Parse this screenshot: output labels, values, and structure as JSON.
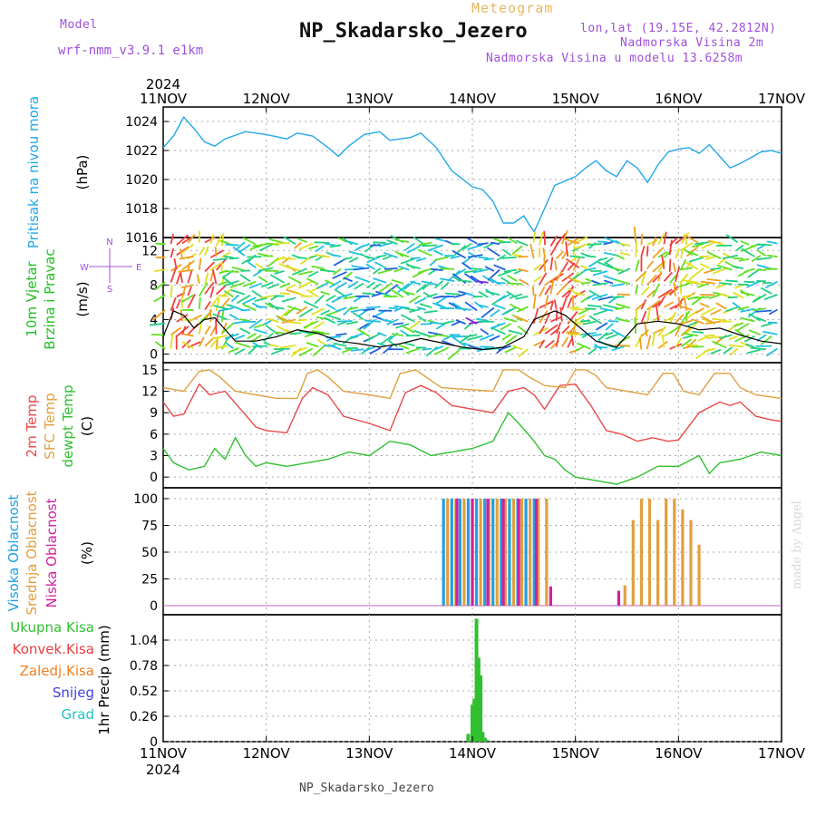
{
  "header": {
    "meteogram_title": "Meteogram",
    "station": "NP_Skadarsko_Jezero",
    "model_label": "Model",
    "model_name": "wrf-nmm_v3.9.1 e1km",
    "lonlat": "lon,lat (19.15E, 42.2812N)",
    "elevation": "Nadmorska Visina 2m",
    "elevation_model": "Nadmorska Visina u modelu 13.6258m"
  },
  "footer": {
    "station": "NP_Skadarsko_Jezero",
    "watermark": "made by Angel"
  },
  "time_axis": {
    "year": "2024",
    "ticks": [
      "11NOV",
      "12NOV",
      "13NOV",
      "14NOV",
      "15NOV",
      "16NOV",
      "17NOV"
    ]
  },
  "colors": {
    "pressure": "#22a8e8",
    "temp2m": "#e84848",
    "sfc_temp": "#e0a040",
    "dewpoint": "#30c030",
    "high_cloud": "#20a0e0",
    "mid_cloud": "#e0a040",
    "low_cloud": "#d020a0",
    "precip_total": "#30c030",
    "precip_conv": "#e84040",
    "precip_frozen": "#f08020",
    "snow": "#4040e0",
    "hail": "#20c0c0",
    "wind_speed": "#000000",
    "gust": "#e84848"
  },
  "chart_data": [
    {
      "type": "line",
      "panel": "pressure",
      "ylabel_main": "Pritisak na nivou mora",
      "unit": "(hPa)",
      "ylim": [
        1016,
        1025
      ],
      "yticks": [
        "1016",
        "1018",
        "1020",
        "1022",
        "1024"
      ],
      "series": [
        {
          "name": "Pritisak na nivou mora",
          "x_days": [
            0,
            0.1,
            0.2,
            0.3,
            0.4,
            0.5,
            0.6,
            0.8,
            1.0,
            1.2,
            1.3,
            1.45,
            1.6,
            1.7,
            1.8,
            1.95,
            2.1,
            2.2,
            2.4,
            2.5,
            2.65,
            2.8,
            3.0,
            3.1,
            3.2,
            3.3,
            3.4,
            3.5,
            3.55,
            3.6,
            3.7,
            3.8,
            3.9,
            4.0,
            4.1,
            4.2,
            4.3,
            4.4,
            4.5,
            4.6,
            4.7,
            4.8,
            4.9,
            5.0,
            5.1,
            5.2,
            5.3,
            5.4,
            5.5,
            5.6,
            5.7,
            5.8,
            5.9,
            6.0
          ],
          "values": [
            1022.2,
            1023,
            1024.3,
            1023.5,
            1022.6,
            1022.3,
            1022.8,
            1023.3,
            1023.1,
            1022.8,
            1023.2,
            1023,
            1022.2,
            1021.6,
            1022.3,
            1023.1,
            1023.3,
            1022.7,
            1022.9,
            1023.2,
            1022.2,
            1020.6,
            1019.5,
            1019.3,
            1018.5,
            1017,
            1017,
            1017.5,
            1016.9,
            1016.4,
            1018,
            1019.6,
            1019.9,
            1020.2,
            1020.8,
            1021.3,
            1020.6,
            1020.2,
            1021.3,
            1020.8,
            1019.8,
            1021,
            1021.9,
            1022.1,
            1022.2,
            1021.8,
            1022.4,
            1021.6,
            1020.8,
            1021.1,
            1021.5,
            1021.9,
            1022,
            1021.8
          ]
        }
      ]
    },
    {
      "type": "line",
      "panel": "wind",
      "ylabel_main": "10m Vjetar",
      "ylabel_sub": "Brzina i Pravac",
      "unit": "(m/s)",
      "ylim": [
        -1,
        13.5
      ],
      "yticks": [
        "0",
        "4",
        "8",
        "12"
      ],
      "compass": [
        "N",
        "S",
        "W",
        "E"
      ],
      "series": [
        {
          "name": "wind speed",
          "x_days": [
            0,
            0.1,
            0.2,
            0.3,
            0.4,
            0.5,
            0.7,
            0.9,
            1.1,
            1.3,
            1.5,
            1.7,
            1.9,
            2.1,
            2.3,
            2.5,
            2.7,
            2.9,
            3.1,
            3.3,
            3.5,
            3.6,
            3.7,
            3.8,
            3.9,
            4.0,
            4.2,
            4.4,
            4.6,
            4.8,
            5.0,
            5.2,
            5.4,
            5.6,
            5.8,
            6.0
          ],
          "values": [
            2,
            5,
            4.5,
            3,
            4,
            4.2,
            1.5,
            1.5,
            2,
            2.8,
            2.4,
            1.5,
            1.2,
            0.8,
            1.2,
            1.8,
            1.3,
            0.8,
            0.5,
            0.8,
            2,
            4,
            4.5,
            5,
            4.5,
            3.5,
            1.5,
            0.8,
            3.5,
            3.8,
            3.5,
            2.8,
            3,
            2.2,
            1.5,
            1.2
          ]
        }
      ]
    },
    {
      "type": "line",
      "panel": "temperature",
      "ylabels": [
        "2m Temp",
        "SFC Temp",
        "dewpt Temp"
      ],
      "unit": "(C)",
      "ylim": [
        -1.5,
        16
      ],
      "yticks": [
        "0",
        "3",
        "6",
        "9",
        "12",
        "15"
      ],
      "series": [
        {
          "name": "2m Temp",
          "x_days": [
            0,
            0.1,
            0.2,
            0.35,
            0.45,
            0.6,
            0.75,
            0.9,
            1.0,
            1.2,
            1.35,
            1.45,
            1.6,
            1.75,
            2.0,
            2.2,
            2.35,
            2.5,
            2.65,
            2.8,
            3.0,
            3.2,
            3.35,
            3.5,
            3.6,
            3.7,
            3.85,
            4.0,
            4.15,
            4.3,
            4.45,
            4.6,
            4.75,
            4.9,
            5.0,
            5.2,
            5.4,
            5.5,
            5.6,
            5.75,
            5.9,
            6.0
          ],
          "values": [
            10.5,
            8.5,
            8.8,
            13,
            11.5,
            12,
            9.5,
            7,
            6.5,
            6.2,
            11,
            12.5,
            11.5,
            8.5,
            7.5,
            6.5,
            11.8,
            12.8,
            11.8,
            10,
            9.5,
            9,
            12,
            12.5,
            11.5,
            9.5,
            12.8,
            13,
            10,
            6.5,
            6,
            5,
            5.5,
            5,
            5.2,
            9,
            10.5,
            10,
            10.5,
            8.5,
            8,
            7.8
          ]
        },
        {
          "name": "SFC Temp",
          "x_days": [
            0,
            0.2,
            0.35,
            0.45,
            0.55,
            0.7,
            0.9,
            1.1,
            1.3,
            1.4,
            1.5,
            1.6,
            1.75,
            2.0,
            2.2,
            2.3,
            2.45,
            2.55,
            2.7,
            3.0,
            3.2,
            3.3,
            3.45,
            3.55,
            3.7,
            3.9,
            4.0,
            4.1,
            4.2,
            4.3,
            4.5,
            4.7,
            4.85,
            4.95,
            5.05,
            5.2,
            5.35,
            5.5,
            5.6,
            5.75,
            6.0
          ],
          "values": [
            12.5,
            12,
            14.8,
            15,
            14,
            12,
            11.5,
            11,
            11,
            14.5,
            15,
            14,
            12,
            11.5,
            11,
            14.5,
            15,
            14,
            12.5,
            12.2,
            12,
            15,
            15,
            14,
            12.8,
            12.5,
            15,
            15,
            14.2,
            12.5,
            12,
            11.5,
            14.5,
            14.5,
            12,
            11.5,
            14.5,
            14.5,
            12.5,
            11.5,
            11
          ]
        },
        {
          "name": "dewpt Temp",
          "x_days": [
            0,
            0.1,
            0.25,
            0.4,
            0.5,
            0.6,
            0.7,
            0.8,
            0.9,
            1.0,
            1.2,
            1.4,
            1.6,
            1.8,
            2.0,
            2.2,
            2.4,
            2.6,
            2.8,
            3.0,
            3.2,
            3.35,
            3.45,
            3.6,
            3.7,
            3.8,
            3.9,
            4.0,
            4.2,
            4.4,
            4.6,
            4.8,
            5.0,
            5.2,
            5.3,
            5.4,
            5.6,
            5.8,
            6.0
          ],
          "values": [
            4,
            2,
            1,
            1.5,
            4,
            2.5,
            5.5,
            3,
            1.5,
            2,
            1.5,
            2,
            2.5,
            3.5,
            3,
            5,
            4.5,
            3,
            3.5,
            4,
            5,
            9,
            7.5,
            5,
            3,
            2.5,
            1,
            0,
            -0.5,
            -1,
            0,
            1.5,
            1.5,
            3,
            0.5,
            2,
            2.5,
            3.5,
            3
          ]
        }
      ]
    },
    {
      "type": "bar",
      "panel": "clouds",
      "ylabels": [
        "Visoka Oblacnost",
        "Srednja Oblacnost",
        "Niska Oblacnost"
      ],
      "unit": "(%)",
      "ylim": [
        0,
        100
      ],
      "yticks": [
        "0",
        "25",
        "50",
        "75",
        "100"
      ],
      "series": [
        {
          "name": "Visoka Oblacnost",
          "x_days": [
            2.72,
            2.8,
            2.88,
            2.96,
            3.04,
            3.12,
            3.2,
            3.28,
            3.36,
            3.44,
            3.52,
            3.6
          ],
          "values": [
            100,
            100,
            100,
            100,
            100,
            100,
            100,
            100,
            100,
            100,
            100,
            100
          ]
        },
        {
          "name": "Srednja Oblacnost",
          "x_days": [
            2.76,
            2.84,
            2.92,
            3.0,
            3.08,
            3.16,
            3.24,
            3.32,
            3.4,
            3.48,
            3.56,
            3.64,
            3.72,
            4.48,
            4.56,
            4.64,
            4.72,
            4.8,
            4.88,
            4.96,
            5.04,
            5.12,
            5.2
          ],
          "values": [
            100,
            100,
            100,
            100,
            100,
            100,
            100,
            100,
            100,
            100,
            100,
            100,
            100,
            19,
            80,
            100,
            100,
            80,
            100,
            100,
            90,
            80,
            57
          ]
        },
        {
          "name": "Niska Oblacnost",
          "x_days": [
            2.85,
            3.0,
            3.15,
            3.3,
            3.45,
            3.62,
            3.76,
            4.42
          ],
          "values": [
            100,
            100,
            100,
            100,
            100,
            100,
            18,
            14
          ]
        }
      ]
    },
    {
      "type": "bar",
      "panel": "precip",
      "ylabels": [
        "Ukupna Kisa",
        "Konvek.Kisa",
        "Zaledj.Kisa",
        "Snijeg",
        "Grad"
      ],
      "ylabel_main": "1hr Precip",
      "unit": "(mm)",
      "ylim": [
        0,
        1.3
      ],
      "yticks": [
        "0",
        "0.26",
        "0.52",
        "0.78",
        "1.04"
      ],
      "series": [
        {
          "name": "Ukupna Kisa",
          "x_days": [
            2.96,
            3.0,
            3.02,
            3.04,
            3.06,
            3.08,
            3.1,
            3.12,
            3.14
          ],
          "values": [
            0.08,
            0.38,
            0.44,
            1.26,
            0.86,
            0.68,
            0.1,
            0.04,
            0.02
          ]
        }
      ]
    }
  ]
}
